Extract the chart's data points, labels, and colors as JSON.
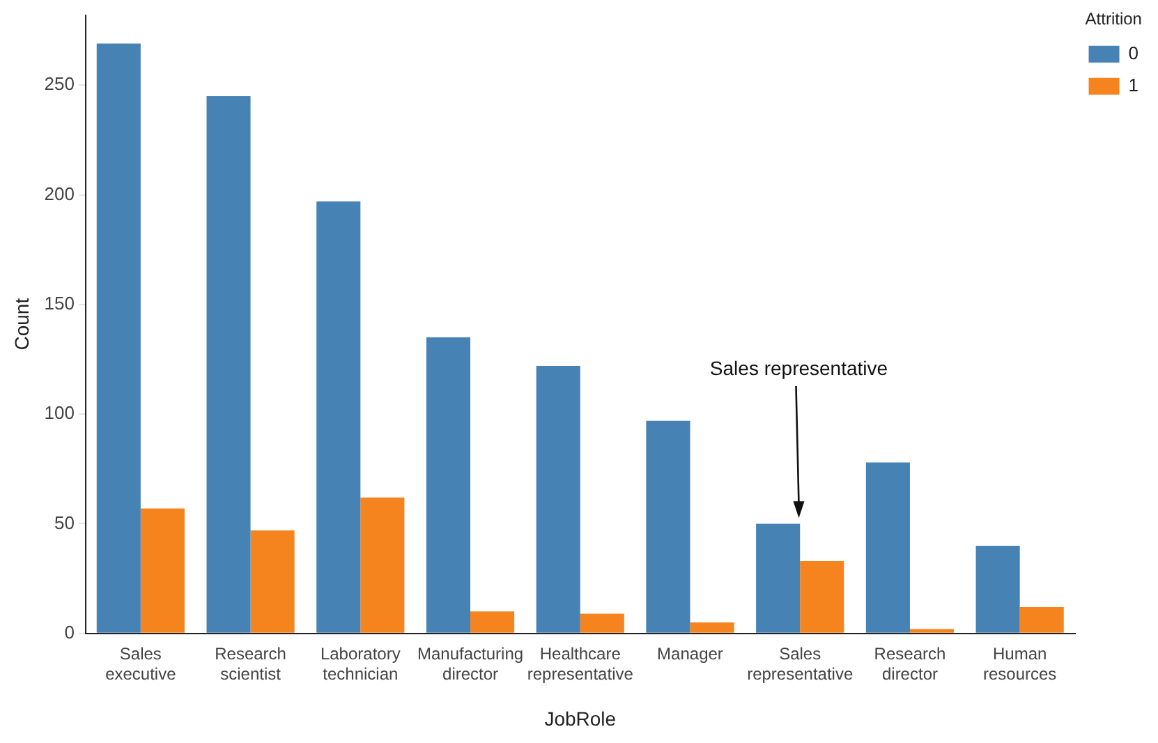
{
  "chart_data": {
    "type": "bar",
    "xlabel": "JobRole",
    "ylabel": "Count",
    "legend_title": "Attrition",
    "legend": "top right",
    "grid": false,
    "categories": [
      "Sales executive",
      "Research scientist",
      "Laboratory technician",
      "Manufacturing director",
      "Healthcare representative",
      "Manager",
      "Sales representative",
      "Research director",
      "Human resources"
    ],
    "series": [
      {
        "name": "0",
        "color": "#4682b4",
        "values": [
          269,
          245,
          197,
          135,
          122,
          97,
          50,
          78,
          40
        ]
      },
      {
        "name": "1",
        "color": "#f5841f",
        "values": [
          57,
          47,
          62,
          10,
          9,
          5,
          33,
          2,
          12
        ]
      }
    ],
    "ylim": [
      0,
      282
    ],
    "yticks": [
      0,
      50,
      100,
      150,
      200,
      250
    ],
    "annotations": [
      "Sales representative"
    ]
  }
}
